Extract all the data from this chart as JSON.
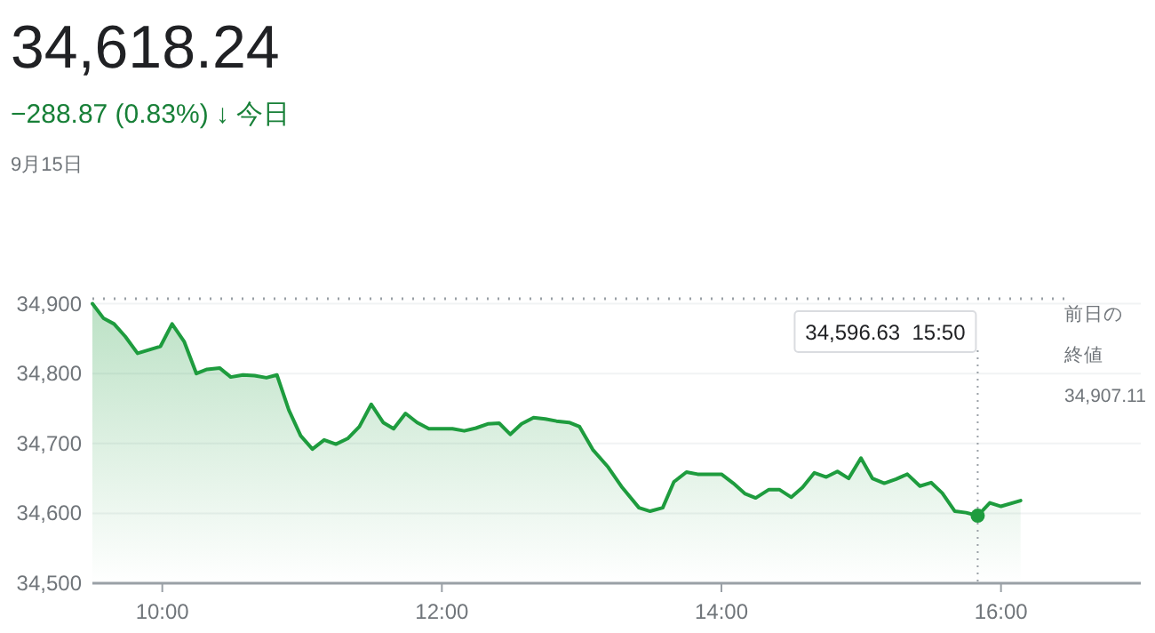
{
  "chart_data": {
    "type": "area",
    "title": "34,618.24",
    "subtitle": "−288.87 (0.83%) ↓ 今日",
    "annotations": [
      "9月15日",
      {
        "text": "34,596.63  15:50",
        "x": 15.8333,
        "y": 34596.63
      }
    ],
    "color": "#1e9c3e",
    "grid": "y",
    "marker": "none",
    "x": [
      9.5,
      9.58,
      9.655,
      9.735,
      9.823,
      9.987,
      10.07,
      10.156,
      10.244,
      10.32,
      10.41,
      10.49,
      10.577,
      10.66,
      10.745,
      10.82,
      10.905,
      10.99,
      11.074,
      11.158,
      11.242,
      11.326,
      11.41,
      11.495,
      11.58,
      11.655,
      11.74,
      11.823,
      11.907,
      12.076,
      12.16,
      12.244,
      12.328,
      12.41,
      12.49,
      12.57,
      12.656,
      12.74,
      12.82,
      12.91,
      12.985,
      13.08,
      13.19,
      13.29,
      13.41,
      13.49,
      13.58,
      13.66,
      13.75,
      13.83,
      14.0,
      14.085,
      14.17,
      14.245,
      14.34,
      14.414,
      14.5,
      14.58,
      14.665,
      14.75,
      14.83,
      14.91,
      14.998,
      15.08,
      15.165,
      15.25,
      15.33,
      15.42,
      15.5,
      15.58,
      15.67,
      15.75,
      15.8333,
      15.92,
      16.0,
      16.14
    ],
    "values": [
      34900,
      34879,
      34871,
      34853,
      34829,
      34839,
      34871,
      34846,
      34800,
      34806,
      34808,
      34795,
      34798,
      34797,
      34794,
      34798,
      34748,
      34711,
      34692,
      34705,
      34699,
      34707,
      34724,
      34756,
      34730,
      34721,
      34743,
      34730,
      34721,
      34721,
      34718,
      34722,
      34728,
      34729,
      34713,
      34728,
      34737,
      34735,
      34732,
      34730,
      34724,
      34691,
      34666,
      34637,
      34608,
      34603,
      34608,
      34645,
      34659,
      34656,
      34656,
      34643,
      34628,
      34622,
      34634,
      34634,
      34623,
      34637,
      34658,
      34652,
      34660,
      34650,
      34679,
      34650,
      34643,
      34649,
      34656,
      34639,
      34644,
      34629,
      34603,
      34601,
      34596.63,
      34615,
      34610,
      34618.24
    ],
    "xlim": [
      9.5,
      17
    ],
    "ylim": [
      34500,
      34907.11
    ],
    "xticks": [
      {
        "value": 10,
        "label": "10:00"
      },
      {
        "value": 12,
        "label": "12:00"
      },
      {
        "value": 14,
        "label": "14:00"
      },
      {
        "value": 16,
        "label": "16:00"
      }
    ],
    "yticks": [
      {
        "value": 34500,
        "label": "34,500"
      },
      {
        "value": 34600,
        "label": "34,600"
      },
      {
        "value": 34700,
        "label": "34,700"
      },
      {
        "value": 34800,
        "label": "34,800"
      },
      {
        "value": 34900,
        "label": "34,900"
      }
    ],
    "ref_lines": [
      {
        "axis": "y",
        "value": 34907.11,
        "label": "前日の終値 34,907.11",
        "line_style": "dotted",
        "color": "#9aa0a6"
      }
    ]
  }
}
